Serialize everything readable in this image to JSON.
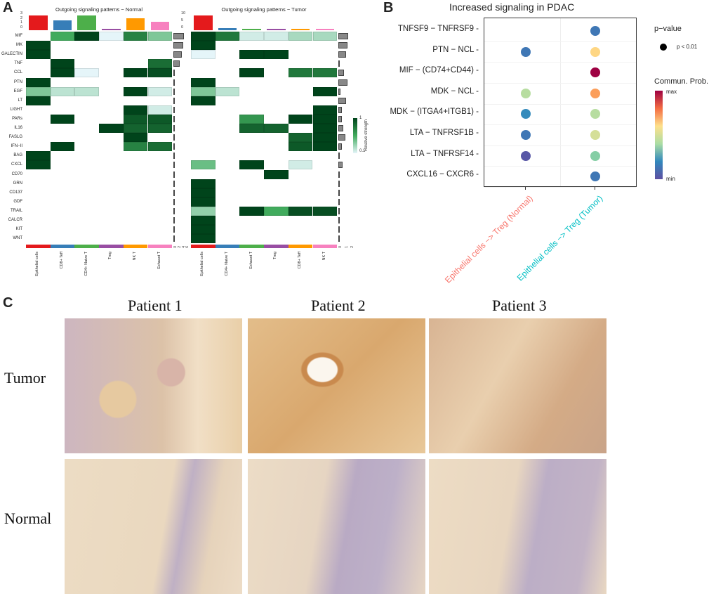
{
  "panels": {
    "a": "A",
    "b": "B",
    "c": "C"
  },
  "chart_data": [
    {
      "type": "heatmap",
      "title": "Outgoing signaling patterns − Normal",
      "rows": [
        "MIF",
        "MK",
        "GALECTIN",
        "TNF",
        "CCL",
        "PTN",
        "EGF",
        "LT",
        "LIGHT",
        "PARs",
        "IL16",
        "FASLG",
        "IFN−II",
        "BAG",
        "CXCL",
        "CD70",
        "GRN",
        "CD137",
        "GDF",
        "TRAIL",
        "CALCR",
        "KIT",
        "WNT"
      ],
      "columns": [
        "Epithelial cells",
        "CD8+ Teff",
        "CD4+ Naive T",
        "Treg",
        "NK T",
        "Exhaust T"
      ],
      "column_colors": [
        "#e41a1c",
        "#377eb8",
        "#4daf4a",
        "#984ea3",
        "#ff9900",
        "#f781bf"
      ],
      "values": [
        [
          0,
          0.5,
          1,
          0.1,
          0.7,
          0.35
        ],
        [
          1,
          0,
          0,
          0,
          0,
          0
        ],
        [
          1,
          0,
          0,
          0,
          0,
          0
        ],
        [
          0,
          1,
          0,
          0,
          0,
          0.8
        ],
        [
          0,
          1,
          0.1,
          0,
          1,
          0.95
        ],
        [
          1,
          0,
          0,
          0,
          0,
          0
        ],
        [
          0.35,
          0.2,
          0.2,
          0,
          1,
          0.15
        ],
        [
          1,
          0,
          0,
          0,
          0,
          0
        ],
        [
          0,
          0,
          0,
          0,
          1,
          0.15
        ],
        [
          0,
          1,
          0,
          0,
          0.9,
          0.9
        ],
        [
          0,
          0,
          0,
          1,
          0.85,
          0.85
        ],
        [
          0,
          0,
          0,
          0,
          1,
          0
        ],
        [
          0,
          1,
          0,
          0,
          0.7,
          0.8
        ],
        [
          1,
          0,
          0,
          0,
          0,
          0
        ],
        [
          1,
          0,
          0,
          0,
          0,
          0
        ],
        [
          0,
          0,
          0,
          0,
          0,
          0
        ],
        [
          0,
          0,
          0,
          0,
          0,
          0
        ],
        [
          0,
          0,
          0,
          0,
          0,
          0
        ],
        [
          0,
          0,
          0,
          0,
          0,
          0
        ],
        [
          0,
          0,
          0,
          0,
          0,
          0
        ],
        [
          0,
          0,
          0,
          0,
          0,
          0
        ],
        [
          0,
          0,
          0,
          0,
          0,
          0
        ],
        [
          0,
          0,
          0,
          0,
          0,
          0
        ]
      ],
      "top_bar_values": [
        3,
        2,
        3,
        0.3,
        2.5,
        1.7
      ],
      "top_axis_ticks": [
        "0",
        "1",
        "2",
        "3"
      ],
      "side_bar_values": [
        5,
        4.5,
        4,
        3,
        0.6,
        0.4,
        0.4,
        0.4,
        0.4,
        0.4,
        0.4,
        0.3,
        0.3,
        0.3,
        0.3,
        0.2,
        0.2,
        0.2,
        0.2,
        0.2,
        0.2,
        0.2,
        0.2
      ],
      "side_axis_ticks": [
        "0",
        "2",
        "4",
        "6"
      ]
    },
    {
      "type": "heatmap",
      "title": "Outgoing signaling patterns − Tumor",
      "rows": [
        "MIF",
        "MK",
        "GALECTIN",
        "TNF",
        "CCL",
        "PTN",
        "EGF",
        "LT",
        "LIGHT",
        "PARs",
        "IL16",
        "FASLG",
        "IFN−II",
        "BAG",
        "CXCL",
        "CD70",
        "GRN",
        "CD137",
        "GDF",
        "TRAIL",
        "CALCR",
        "KIT",
        "WNT"
      ],
      "columns": [
        "Epithelial cells",
        "CD4+ Naive T",
        "Exhaust T",
        "Treg",
        "CD8+ Teff",
        "NK T"
      ],
      "column_colors": [
        "#e41a1c",
        "#377eb8",
        "#4daf4a",
        "#984ea3",
        "#ff9900",
        "#f781bf"
      ],
      "values": [
        [
          1,
          0.75,
          0.15,
          0.15,
          0.25,
          0.25
        ],
        [
          1,
          0,
          0,
          0,
          0,
          0
        ],
        [
          0.1,
          0,
          1,
          1,
          0,
          0
        ],
        [
          0,
          0,
          0,
          0,
          0,
          0
        ],
        [
          0,
          0,
          1,
          0,
          0.75,
          0.75
        ],
        [
          1,
          0,
          0,
          0,
          0,
          0
        ],
        [
          0.35,
          0.2,
          0,
          0,
          0,
          1
        ],
        [
          1,
          0,
          0,
          0,
          0,
          0
        ],
        [
          0,
          0,
          0,
          0,
          0,
          1
        ],
        [
          0,
          0,
          0.6,
          0,
          1,
          1
        ],
        [
          0,
          0,
          0.85,
          0.85,
          0,
          1
        ],
        [
          0,
          0,
          0,
          0,
          0.85,
          1
        ],
        [
          0,
          0,
          0,
          0,
          0.9,
          1
        ],
        [
          0,
          0,
          0,
          0,
          0,
          0
        ],
        [
          0.4,
          0,
          1,
          0,
          0.15,
          0
        ],
        [
          0,
          0,
          0,
          1,
          0,
          0
        ],
        [
          1,
          0,
          0,
          0,
          0,
          0
        ],
        [
          1,
          0,
          0,
          0,
          0,
          0
        ],
        [
          1,
          0,
          0,
          0,
          0,
          0
        ],
        [
          0.3,
          0,
          1,
          0.5,
          0.95,
          0.95
        ],
        [
          1,
          0,
          0,
          0,
          0,
          0
        ],
        [
          1,
          0,
          0,
          0,
          0,
          0
        ],
        [
          1,
          0,
          0,
          0,
          0,
          0
        ]
      ],
      "top_bar_values": [
        11,
        1.5,
        1.3,
        1.3,
        1.3,
        1.3
      ],
      "top_axis_ticks": [
        "0",
        "5",
        "10"
      ],
      "side_bar_values": [
        1.6,
        1.5,
        1.3,
        0.05,
        0.9,
        1.5,
        0.3,
        1.3,
        0.5,
        0.6,
        0.8,
        1.1,
        0.5,
        0.05,
        0.7,
        0.25,
        0.2,
        0.2,
        0.2,
        0.2,
        0.2,
        0.2,
        0.2
      ],
      "side_axis_ticks": [
        "0",
        "1",
        "2"
      ],
      "legend": {
        "title": "Relative strength",
        "max": "1",
        "min": "0.1"
      }
    },
    {
      "type": "scatter",
      "title": "Increased signaling in PDAC",
      "rows": [
        "TNFSF9 − TNFRSF9",
        "PTN − NCL",
        "MIF − (CD74+CD44)",
        "MDK − NCL",
        "MDK − (ITGA4+ITGB1)",
        "LTA − TNFRSF1B",
        "LTA − TNFRSF14",
        "CXCL16 − CXCR6"
      ],
      "columns": [
        "Epithelial cells −> Treg (Normal)",
        "Epithelial cells −> Treg (Tumor)"
      ],
      "column_label_colors": [
        "#f8766d",
        "#00bfc4"
      ],
      "commun_prob": [
        [
          null,
          0.1
        ],
        [
          0.1,
          0.6
        ],
        [
          null,
          1
        ],
        [
          0.45,
          0.75
        ],
        [
          0.15,
          0.45
        ],
        [
          0.1,
          0.5
        ],
        [
          0.02,
          0.35
        ],
        [
          null,
          0.1
        ]
      ],
      "legend": {
        "pvalue_title": "p−value",
        "pvalue_label": "p < 0.01",
        "color_title": "Commun. Prob.",
        "max": "max",
        "min": "min"
      }
    }
  ],
  "histology": {
    "columns": [
      "Patient 1",
      "Patient 2",
      "Patient 3"
    ],
    "rows": [
      "Tumor",
      "Normal"
    ]
  }
}
